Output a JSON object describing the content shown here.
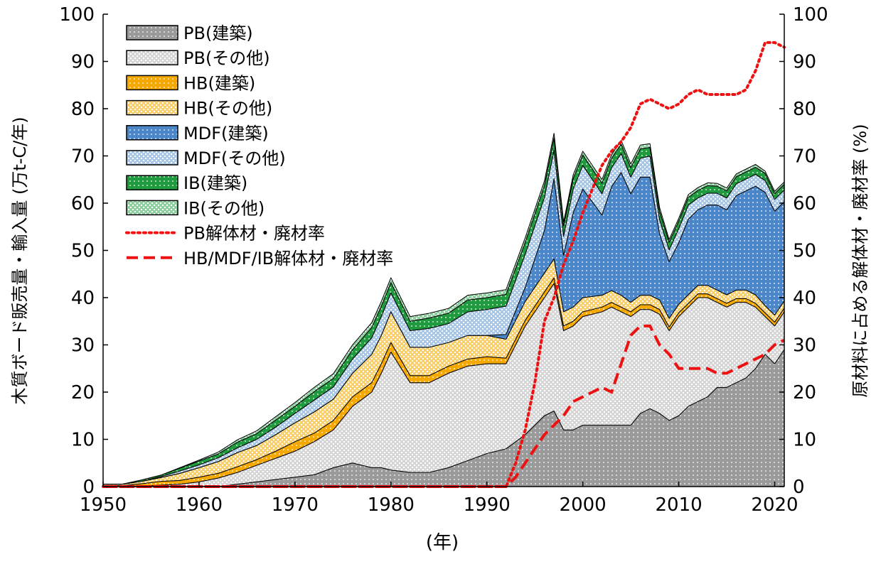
{
  "chart_data": {
    "type": "area",
    "xlabel": "(年)",
    "ylabel_left": "木質ボード販売量・輸入量 (万t-C/年)",
    "ylabel_right": "原材料に占める解体材・廃材率 (%)",
    "xlim": [
      1950,
      2021
    ],
    "ylim_left": [
      0,
      100
    ],
    "ylim_right": [
      0,
      100
    ],
    "x_ticks": [
      1950,
      1960,
      1970,
      1980,
      1990,
      2000,
      2010,
      2020
    ],
    "y_ticks": [
      0,
      10,
      20,
      30,
      40,
      50,
      60,
      70,
      80,
      90,
      100
    ],
    "grid": false,
    "legend_position": "top-left",
    "colors": {
      "pb_build": "#9a9a9a",
      "pb_other": "#d6d6d6",
      "hb_build": "#f5a800",
      "hb_other": "#f8d070",
      "mdf_build": "#4a86c8",
      "mdf_other": "#a9c8e8",
      "ib_build": "#1f9a3e",
      "ib_other": "#8fd0a0",
      "rate": "#ee1111"
    },
    "x": [
      1950,
      1952,
      1954,
      1956,
      1958,
      1960,
      1962,
      1964,
      1966,
      1968,
      1970,
      1972,
      1974,
      1976,
      1978,
      1979,
      1980,
      1982,
      1984,
      1986,
      1988,
      1990,
      1992,
      1994,
      1996,
      1997,
      1998,
      1999,
      2000,
      2002,
      2003,
      2004,
      2005,
      2006,
      2007,
      2008,
      2009,
      2010,
      2011,
      2012,
      2013,
      2014,
      2015,
      2016,
      2017,
      2018,
      2019,
      2020,
      2021
    ],
    "series": [
      {
        "name": "PB(建築)",
        "key": "pb_build",
        "pattern": "dots",
        "values": [
          0,
          0,
          0,
          0,
          0,
          0,
          0,
          0.5,
          1.0,
          1.5,
          2.0,
          2.5,
          4.0,
          5.0,
          4.0,
          4.0,
          3.5,
          3.0,
          3.0,
          4.0,
          5.5,
          7.0,
          8.0,
          11,
          15,
          16,
          12,
          12,
          13,
          13,
          13,
          13,
          13,
          15.5,
          16.5,
          15.5,
          14,
          15,
          17,
          18,
          19,
          21,
          21,
          22,
          23,
          25,
          28,
          26,
          29
        ]
      },
      {
        "name": "PB(その他)",
        "key": "pb_other",
        "pattern": "check",
        "values": [
          0,
          0,
          0.1,
          0.3,
          0.5,
          1.0,
          1.8,
          2.5,
          3.5,
          4.5,
          5.5,
          7.0,
          8.0,
          12,
          16,
          20,
          25,
          19,
          19,
          20,
          20,
          19,
          18,
          23,
          25,
          27,
          21,
          22,
          23,
          24,
          25,
          24,
          23,
          22,
          21,
          21,
          19,
          21,
          21,
          22,
          21,
          18,
          17,
          17,
          16,
          13,
          8,
          8,
          8
        ]
      },
      {
        "name": "HB(建築)",
        "key": "hb_build",
        "pattern": "dots",
        "values": [
          0.2,
          0.2,
          0.5,
          0.8,
          0.8,
          1.0,
          1.0,
          1.2,
          1.2,
          1.5,
          2.0,
          1.8,
          2.0,
          2.0,
          2.0,
          2.0,
          2.0,
          1.5,
          1.5,
          1.5,
          1.5,
          1.5,
          1.2,
          1.2,
          1.2,
          1.2,
          1.0,
          1.0,
          1.0,
          1.0,
          1.0,
          1.0,
          1.0,
          1.0,
          1.0,
          1.0,
          0.8,
          0.8,
          0.8,
          0.8,
          0.8,
          0.8,
          0.8,
          0.8,
          0.8,
          0.8,
          0.8,
          0.8,
          0.8
        ]
      },
      {
        "name": "HB(その他)",
        "key": "hb_other",
        "pattern": "check",
        "values": [
          0.3,
          0.3,
          0.5,
          0.8,
          1.5,
          2.0,
          2.5,
          3.0,
          3.0,
          3.5,
          4.0,
          4.5,
          4.5,
          5.0,
          6.0,
          6.0,
          6.5,
          6.0,
          6.0,
          5.0,
          5.0,
          4.5,
          4.0,
          4.0,
          4.0,
          4.0,
          3.0,
          3.0,
          3.0,
          2.5,
          2.5,
          2.5,
          2.0,
          2.0,
          2.0,
          2.0,
          1.8,
          1.8,
          1.8,
          1.8,
          1.8,
          1.8,
          1.8,
          1.8,
          1.8,
          1.8,
          1.5,
          1.5,
          1.5
        ]
      },
      {
        "name": "MDF(建築)",
        "key": "mdf_build",
        "pattern": "dots",
        "values": [
          0,
          0,
          0,
          0,
          0,
          0,
          0,
          0,
          0,
          0,
          0,
          0,
          0,
          0,
          0,
          0,
          0,
          0,
          0,
          0,
          0,
          0,
          1.0,
          3.0,
          9.0,
          17,
          12,
          20,
          23,
          17,
          22,
          26,
          23,
          25,
          25,
          14,
          12,
          13,
          16,
          16,
          17,
          18,
          18,
          20,
          21,
          23,
          24,
          22,
          21
        ]
      },
      {
        "name": "MDF(その他)",
        "key": "mdf_other",
        "pattern": "check",
        "values": [
          0,
          0,
          0,
          0.2,
          0.5,
          0.6,
          0.8,
          1.0,
          1.3,
          1.6,
          2.0,
          2.5,
          2.6,
          3.0,
          3.5,
          4.0,
          4.0,
          3.5,
          4.0,
          4.0,
          5.0,
          5.5,
          6.0,
          7.0,
          7.0,
          6.0,
          4.0,
          5.0,
          5.0,
          4.5,
          4.0,
          4.0,
          3.5,
          4.0,
          4.5,
          3.0,
          2.5,
          3.0,
          3.0,
          2.5,
          2.5,
          2.5,
          2.5,
          2.5,
          2.5,
          2.5,
          2.5,
          2.5,
          2.5
        ]
      },
      {
        "name": "IB(建築)",
        "key": "ib_build",
        "pattern": "dots",
        "values": [
          0,
          0,
          0.3,
          0.3,
          0.6,
          0.8,
          0.8,
          1.2,
          1.2,
          1.5,
          1.5,
          1.8,
          1.8,
          2.0,
          2.2,
          2.2,
          2.2,
          2.0,
          2.2,
          2.2,
          2.5,
          2.5,
          2.5,
          2.5,
          2.5,
          2.6,
          2.2,
          2.2,
          2.2,
          2.2,
          2.0,
          2.0,
          2.0,
          2.0,
          1.8,
          1.8,
          1.6,
          1.6,
          1.6,
          1.6,
          1.6,
          1.5,
          1.5,
          1.5,
          1.5,
          1.5,
          1.5,
          1.2,
          1.2
        ]
      },
      {
        "name": "IB(その他)",
        "key": "ib_other",
        "pattern": "check",
        "values": [
          0,
          0,
          0,
          0,
          0.1,
          0.2,
          0.4,
          0.5,
          0.6,
          0.7,
          0.8,
          0.9,
          1.0,
          1.0,
          1.0,
          1.0,
          1.0,
          1.0,
          1.0,
          1.0,
          1.0,
          1.0,
          1.0,
          1.0,
          1.0,
          1.0,
          0.8,
          0.8,
          0.8,
          0.8,
          0.8,
          0.8,
          0.8,
          0.8,
          0.8,
          0.8,
          0.6,
          0.6,
          0.6,
          0.6,
          0.6,
          0.6,
          0.6,
          0.6,
          0.6,
          0.6,
          0.5,
          0.5,
          0.5
        ]
      }
    ],
    "rate_series": [
      {
        "name": "PB解体材・廃材率",
        "style": "dotted",
        "x": [
          1950,
          1992,
          1993,
          1994,
          1995,
          1996,
          1997,
          1998,
          1999,
          2000,
          2001,
          2002,
          2003,
          2004,
          2005,
          2006,
          2007,
          2008,
          2009,
          2010,
          2011,
          2012,
          2013,
          2014,
          2015,
          2016,
          2017,
          2018,
          2019,
          2020,
          2021
        ],
        "values": [
          0,
          0,
          5,
          12,
          22,
          35,
          40,
          47,
          52,
          58,
          63,
          68,
          71,
          73,
          76,
          81,
          82,
          81,
          80,
          81,
          83,
          84,
          83,
          83,
          83,
          83,
          84,
          88,
          94,
          94,
          93
        ]
      },
      {
        "name": "HB/MDF/IB解体材・廃材率",
        "style": "dashed",
        "x": [
          1950,
          1992,
          1993,
          1994,
          1995,
          1996,
          1997,
          1998,
          1999,
          2000,
          2001,
          2002,
          2003,
          2004,
          2005,
          2006,
          2007,
          2008,
          2009,
          2010,
          2011,
          2012,
          2013,
          2014,
          2015,
          2016,
          2017,
          2018,
          2019,
          2020,
          2021
        ],
        "values": [
          0,
          0,
          2,
          5,
          8,
          11,
          13,
          15,
          18,
          19,
          20,
          21,
          20,
          26,
          32,
          34,
          34,
          30,
          28,
          25,
          25,
          25,
          25,
          24,
          24,
          25,
          26,
          27,
          28,
          30,
          31
        ]
      }
    ]
  }
}
